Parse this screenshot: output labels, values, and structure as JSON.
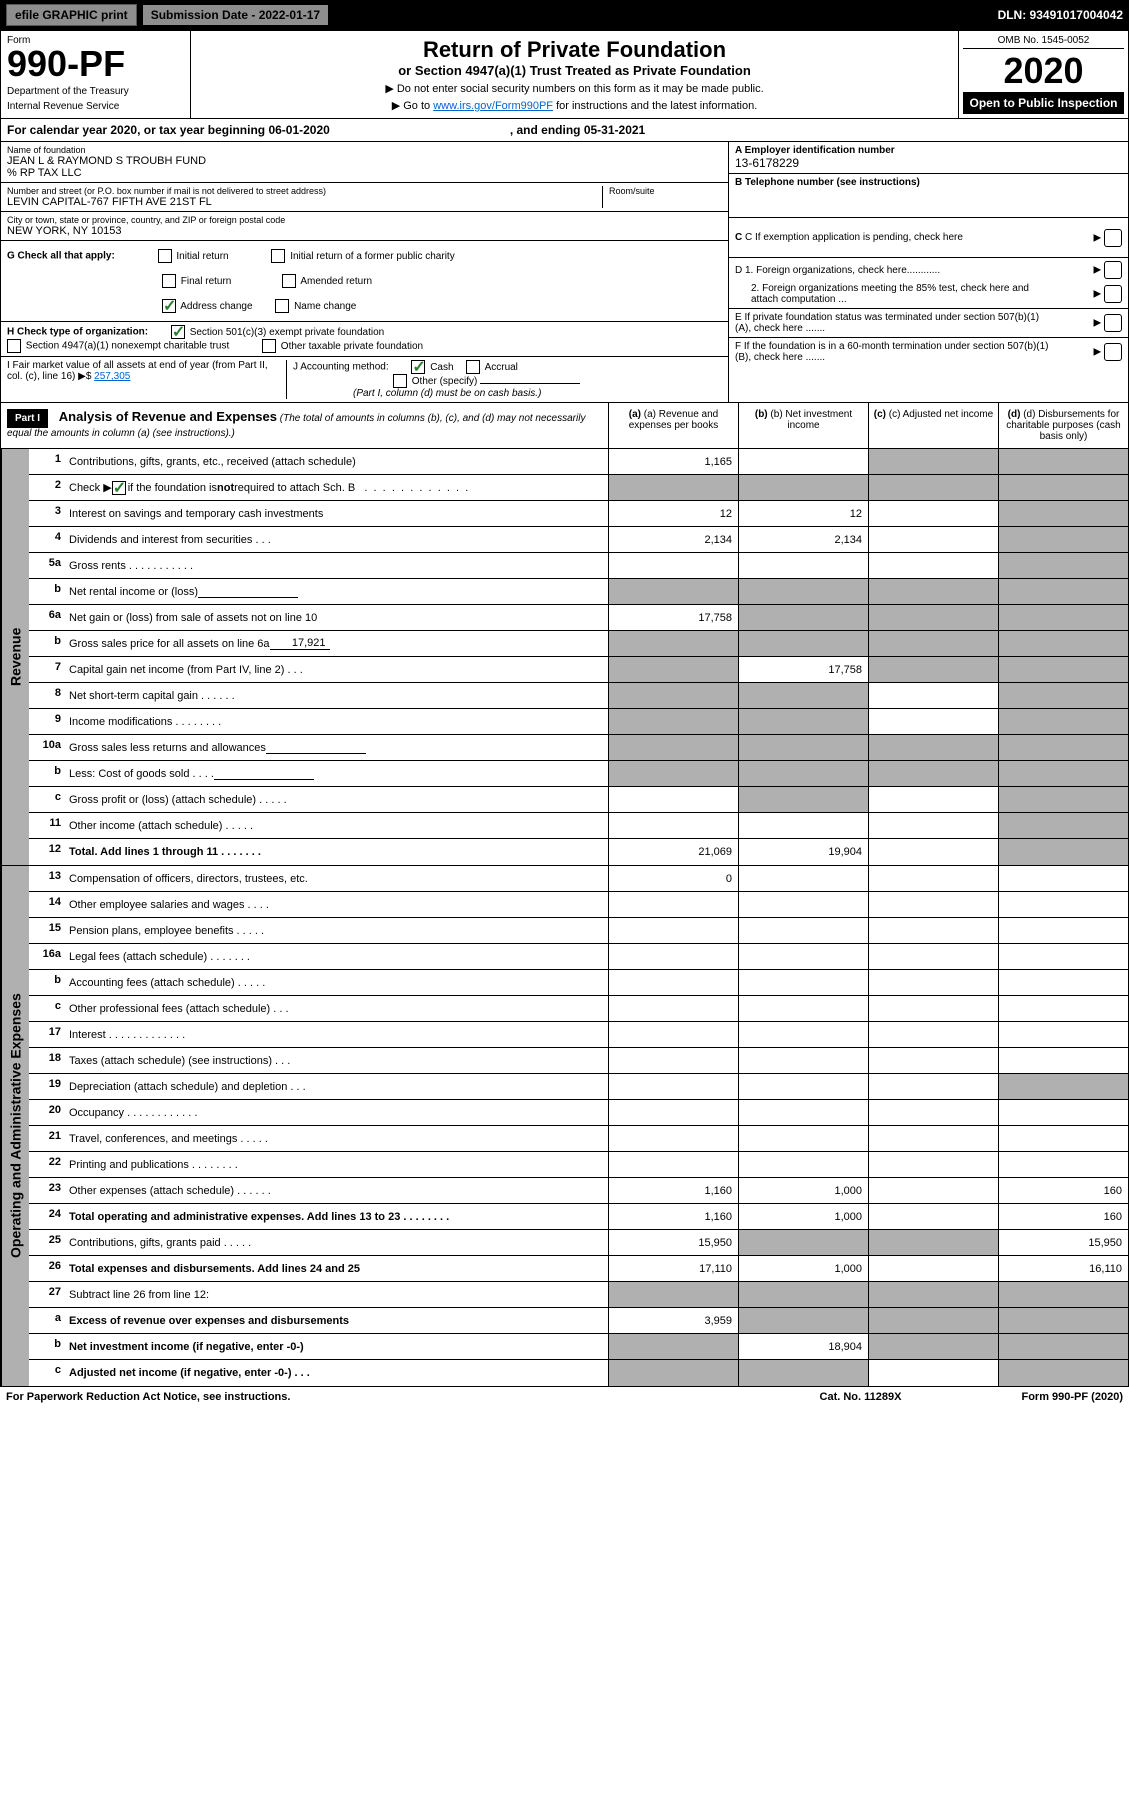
{
  "top": {
    "efile": "efile GRAPHIC print",
    "submission": "Submission Date - 2022-01-17",
    "dln": "DLN: 93491017004042"
  },
  "header": {
    "form_label": "Form",
    "form_num": "990-PF",
    "dept": "Department of the Treasury",
    "irs": "Internal Revenue Service",
    "title": "Return of Private Foundation",
    "subtitle": "or Section 4947(a)(1) Trust Treated as Private Foundation",
    "note1": "▶ Do not enter social security numbers on this form as it may be made public.",
    "note2_pre": "▶ Go to ",
    "note2_link": "www.irs.gov/Form990PF",
    "note2_post": " for instructions and the latest information.",
    "omb": "OMB No. 1545-0052",
    "year": "2020",
    "open": "Open to Public Inspection"
  },
  "cal": {
    "text": "For calendar year 2020, or tax year beginning 06-01-2020",
    "ending": ", and ending 05-31-2021"
  },
  "info": {
    "name_label": "Name of foundation",
    "name": "JEAN L & RAYMOND S TROUBH FUND",
    "care_of": "% RP TAX LLC",
    "addr_label": "Number and street (or P.O. box number if mail is not delivered to street address)",
    "addr": "LEVIN CAPITAL-767 FIFTH AVE 21ST FL",
    "room_label": "Room/suite",
    "city_label": "City or town, state or province, country, and ZIP or foreign postal code",
    "city": "NEW YORK, NY  10153",
    "ein_label": "A Employer identification number",
    "ein": "13-6178229",
    "phone_label": "B Telephone number (see instructions)",
    "c_label": "C If exemption application is pending, check here",
    "d1": "D 1. Foreign organizations, check here............",
    "d2": "2. Foreign organizations meeting the 85% test, check here and attach computation ...",
    "e_label": "E If private foundation status was terminated under section 507(b)(1)(A), check here .......",
    "f_label": "F If the foundation is in a 60-month termination under section 507(b)(1)(B), check here ......."
  },
  "g": {
    "label": "G Check all that apply:",
    "initial": "Initial return",
    "initial_former": "Initial return of a former public charity",
    "final": "Final return",
    "amended": "Amended return",
    "address": "Address change",
    "name": "Name change"
  },
  "h": {
    "label": "H Check type of organization:",
    "501c3": "Section 501(c)(3) exempt private foundation",
    "4947": "Section 4947(a)(1) nonexempt charitable trust",
    "other": "Other taxable private foundation"
  },
  "i": {
    "label": "I Fair market value of all assets at end of year (from Part II, col. (c), line 16)",
    "value": "257,305"
  },
  "j": {
    "label": "J Accounting method:",
    "cash": "Cash",
    "accrual": "Accrual",
    "other": "Other (specify)",
    "note": "(Part I, column (d) must be on cash basis.)"
  },
  "part1": {
    "header": "Part I",
    "title": "Analysis of Revenue and Expenses",
    "title_note": "(The total of amounts in columns (b), (c), and (d) may not necessarily equal the amounts in column (a) (see instructions).)",
    "col_a": "(a) Revenue and expenses per books",
    "col_b": "(b) Net investment income",
    "col_c": "(c) Adjusted net income",
    "col_d": "(d) Disbursements for charitable purposes (cash basis only)"
  },
  "sides": {
    "revenue": "Revenue",
    "expenses": "Operating and Administrative Expenses"
  },
  "rows": [
    {
      "n": "1",
      "label": "Contributions, gifts, grants, etc., received (attach schedule)",
      "a": "1,165",
      "b": "",
      "c": "",
      "d": "",
      "shade_c": true,
      "shade_d": true
    },
    {
      "n": "2",
      "label": "Check ▶ ☑ if the foundation is not required to attach Sch. B   . . . . . . . . . . . . . . . . .",
      "a": "",
      "b": "",
      "c": "",
      "d": "",
      "shade_a": true,
      "shade_b": true,
      "shade_c": true,
      "shade_d": true,
      "has_check": true
    },
    {
      "n": "3",
      "label": "Interest on savings and temporary cash investments",
      "a": "12",
      "b": "12",
      "c": "",
      "d": "",
      "shade_d": true
    },
    {
      "n": "4",
      "label": "Dividends and interest from securities   .  .  .",
      "a": "2,134",
      "b": "2,134",
      "c": "",
      "d": "",
      "shade_d": true
    },
    {
      "n": "5a",
      "label": "Gross rents   .  .  .  .  .  .  .  .  .  .  .",
      "a": "",
      "b": "",
      "c": "",
      "d": "",
      "shade_d": true
    },
    {
      "n": "b",
      "label": "Net rental income or (loss)",
      "a": "",
      "b": "",
      "c": "",
      "d": "",
      "inline_box": true,
      "shade_a": true,
      "shade_b": true,
      "shade_c": true,
      "shade_d": true
    },
    {
      "n": "6a",
      "label": "Net gain or (loss) from sale of assets not on line 10",
      "a": "17,758",
      "b": "",
      "c": "",
      "d": "",
      "shade_b": true,
      "shade_c": true,
      "shade_d": true
    },
    {
      "n": "b",
      "label": "Gross sales price for all assets on line 6a",
      "a": "",
      "b": "",
      "c": "",
      "d": "",
      "inline_val": "17,921",
      "shade_a": true,
      "shade_b": true,
      "shade_c": true,
      "shade_d": true
    },
    {
      "n": "7",
      "label": "Capital gain net income (from Part IV, line 2)   .  .  .",
      "a": "",
      "b": "17,758",
      "c": "",
      "d": "",
      "shade_a": true,
      "shade_c": true,
      "shade_d": true
    },
    {
      "n": "8",
      "label": "Net short-term capital gain   .  .  .  .  .  .",
      "a": "",
      "b": "",
      "c": "",
      "d": "",
      "shade_a": true,
      "shade_b": true,
      "shade_d": true
    },
    {
      "n": "9",
      "label": "Income modifications  .  .  .  .  .  .  .  .",
      "a": "",
      "b": "",
      "c": "",
      "d": "",
      "shade_a": true,
      "shade_b": true,
      "shade_d": true
    },
    {
      "n": "10a",
      "label": "Gross sales less returns and allowances",
      "a": "",
      "b": "",
      "c": "",
      "d": "",
      "inline_box": true,
      "shade_a": true,
      "shade_b": true,
      "shade_c": true,
      "shade_d": true
    },
    {
      "n": "b",
      "label": "Less: Cost of goods sold   .  .  .  .",
      "a": "",
      "b": "",
      "c": "",
      "d": "",
      "inline_box": true,
      "shade_a": true,
      "shade_b": true,
      "shade_c": true,
      "shade_d": true
    },
    {
      "n": "c",
      "label": "Gross profit or (loss) (attach schedule)   .  .  .  .  .",
      "a": "",
      "b": "",
      "c": "",
      "d": "",
      "shade_b": true,
      "shade_d": true
    },
    {
      "n": "11",
      "label": "Other income (attach schedule)   .  .  .  .  .",
      "a": "",
      "b": "",
      "c": "",
      "d": "",
      "shade_d": true
    },
    {
      "n": "12",
      "label": "Total. Add lines 1 through 11   .  .  .  .  .  .  .",
      "a": "21,069",
      "b": "19,904",
      "c": "",
      "d": "",
      "bold": true,
      "shade_d": true
    }
  ],
  "exp_rows": [
    {
      "n": "13",
      "label": "Compensation of officers, directors, trustees, etc.",
      "a": "0",
      "b": "",
      "c": "",
      "d": ""
    },
    {
      "n": "14",
      "label": "Other employee salaries and wages   .  .  .  .",
      "a": "",
      "b": "",
      "c": "",
      "d": ""
    },
    {
      "n": "15",
      "label": "Pension plans, employee benefits   .  .  .  .  .",
      "a": "",
      "b": "",
      "c": "",
      "d": ""
    },
    {
      "n": "16a",
      "label": "Legal fees (attach schedule)  .  .  .  .  .  .  .",
      "a": "",
      "b": "",
      "c": "",
      "d": ""
    },
    {
      "n": "b",
      "label": "Accounting fees (attach schedule)  .  .  .  .  .",
      "a": "",
      "b": "",
      "c": "",
      "d": ""
    },
    {
      "n": "c",
      "label": "Other professional fees (attach schedule)   .  .  .",
      "a": "",
      "b": "",
      "c": "",
      "d": ""
    },
    {
      "n": "17",
      "label": "Interest  .  .  .  .  .  .  .  .  .  .  .  .  .",
      "a": "",
      "b": "",
      "c": "",
      "d": ""
    },
    {
      "n": "18",
      "label": "Taxes (attach schedule) (see instructions)   .  .  .",
      "a": "",
      "b": "",
      "c": "",
      "d": ""
    },
    {
      "n": "19",
      "label": "Depreciation (attach schedule) and depletion   .  .  .",
      "a": "",
      "b": "",
      "c": "",
      "d": "",
      "shade_d": true
    },
    {
      "n": "20",
      "label": "Occupancy  .  .  .  .  .  .  .  .  .  .  .  .",
      "a": "",
      "b": "",
      "c": "",
      "d": ""
    },
    {
      "n": "21",
      "label": "Travel, conferences, and meetings  .  .  .  .  .",
      "a": "",
      "b": "",
      "c": "",
      "d": ""
    },
    {
      "n": "22",
      "label": "Printing and publications  .  .  .  .  .  .  .  .",
      "a": "",
      "b": "",
      "c": "",
      "d": ""
    },
    {
      "n": "23",
      "label": "Other expenses (attach schedule)  .  .  .  .  .  .",
      "a": "1,160",
      "b": "1,000",
      "c": "",
      "d": "160"
    },
    {
      "n": "24",
      "label": "Total operating and administrative expenses. Add lines 13 to 23   .  .  .  .  .  .  .  .",
      "a": "1,160",
      "b": "1,000",
      "c": "",
      "d": "160",
      "bold": true
    },
    {
      "n": "25",
      "label": "Contributions, gifts, grants paid   .  .  .  .  .",
      "a": "15,950",
      "b": "",
      "c": "",
      "d": "15,950",
      "shade_b": true,
      "shade_c": true
    },
    {
      "n": "26",
      "label": "Total expenses and disbursements. Add lines 24 and 25",
      "a": "17,110",
      "b": "1,000",
      "c": "",
      "d": "16,110",
      "bold": true
    },
    {
      "n": "27",
      "label": "Subtract line 26 from line 12:",
      "a": "",
      "b": "",
      "c": "",
      "d": "",
      "shade_a": true,
      "shade_b": true,
      "shade_c": true,
      "shade_d": true
    },
    {
      "n": "a",
      "label": "Excess of revenue over expenses and disbursements",
      "a": "3,959",
      "b": "",
      "c": "",
      "d": "",
      "bold": true,
      "shade_b": true,
      "shade_c": true,
      "shade_d": true
    },
    {
      "n": "b",
      "label": "Net investment income (if negative, enter -0-)",
      "a": "",
      "b": "18,904",
      "c": "",
      "d": "",
      "bold": true,
      "shade_a": true,
      "shade_c": true,
      "shade_d": true
    },
    {
      "n": "c",
      "label": "Adjusted net income (if negative, enter -0-)  .  .  .",
      "a": "",
      "b": "",
      "c": "",
      "d": "",
      "bold": true,
      "shade_a": true,
      "shade_b": true,
      "shade_d": true
    }
  ],
  "footer": {
    "paperwork": "For Paperwork Reduction Act Notice, see instructions.",
    "cat": "Cat. No. 11289X",
    "form": "Form 990-PF (2020)"
  },
  "colors": {
    "shade": "#b0b0b0",
    "link": "#0066cc",
    "check": "#2e7d32"
  }
}
